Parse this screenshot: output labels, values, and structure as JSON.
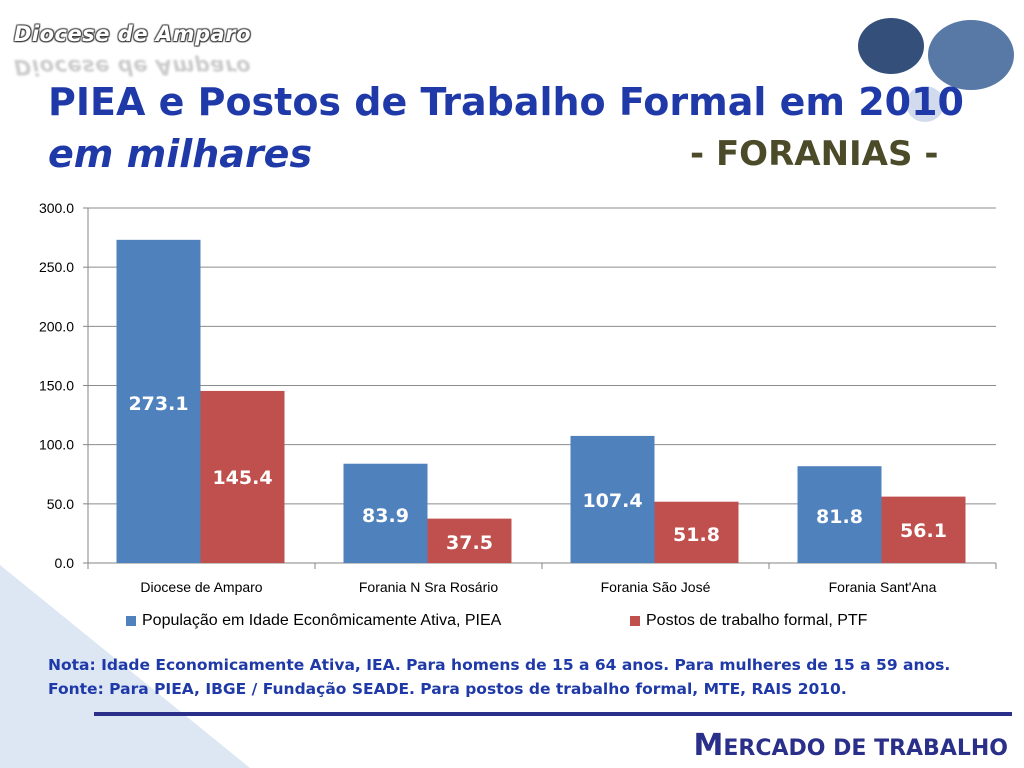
{
  "header": {
    "logo_text": "Diocese de Amparo",
    "title_line1": "PIEA e Postos de Trabalho Formal em 2010",
    "title_line2_italic": "em milhares",
    "title_line2_right": "- FORANIAS -"
  },
  "chart_data": {
    "type": "bar",
    "categories": [
      "Diocese de Amparo",
      "Forania N Sra Rosário",
      "Forania São José",
      "Forania Sant'Ana"
    ],
    "series": [
      {
        "name": "População em Idade Econômicamente Ativa, PIEA",
        "color": "#4f81bd",
        "values": [
          273.1,
          83.9,
          107.4,
          81.8
        ]
      },
      {
        "name": "Postos de trabalho formal, PTF",
        "color": "#c0504d",
        "values": [
          145.4,
          37.5,
          51.8,
          56.1
        ]
      }
    ],
    "ylim": [
      0,
      300
    ],
    "yticks": [
      "0.0",
      "50.0",
      "100.0",
      "150.0",
      "200.0",
      "250.0",
      "300.0"
    ],
    "grid": true,
    "legend_position": "bottom"
  },
  "notes": {
    "line1": "Nota: Idade Economicamente Ativa, IEA. Para homens de 15 a 64 anos. Para mulheres de 15 a 59 anos.",
    "line2": "Fonte: Para PIEA, IBGE / Fundação SEADE. Para postos de trabalho formal, MTE, RAIS 2010."
  },
  "footer": {
    "brand_initial": "M",
    "brand_rest": "ERCADO DE TRABALHO"
  },
  "colors": {
    "title_blue": "#1f3aa8",
    "foranias_olive": "#4b4b2a",
    "footer_navy": "#2a2f8a"
  }
}
